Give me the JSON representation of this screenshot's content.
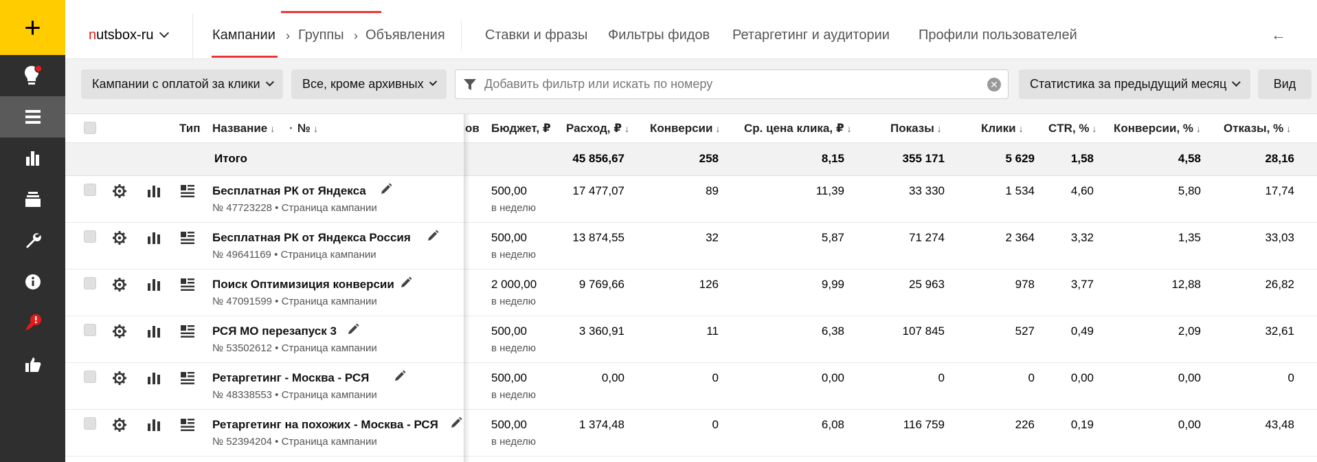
{
  "sidebar": {
    "add_label": "+",
    "items": [
      {
        "icon": "lightbulb-icon"
      },
      {
        "icon": "list-icon"
      },
      {
        "icon": "bar-chart-icon"
      },
      {
        "icon": "layers-icon"
      },
      {
        "icon": "wrench-icon"
      },
      {
        "icon": "info-icon"
      },
      {
        "icon": "rocket-alert-icon"
      },
      {
        "icon": "thumbs-up-icon"
      }
    ],
    "colors": {
      "bg": "#2f2f2f",
      "add_bg": "#ffcc00",
      "active": "#5a5a5a",
      "badge": "#e41b1b"
    }
  },
  "topnav": {
    "account_first_letter": "n",
    "account_rest": "utsbox-ru",
    "tabs": {
      "campaigns": "Кампании",
      "groups": "Группы",
      "ads": "Объявления",
      "bids": "Ставки и фразы",
      "feed_filters": "Фильтры фидов",
      "retargeting": "Ретаргетинг и аудитории",
      "profiles": "Профили пользователей"
    },
    "back_icon": "arrow-left-icon"
  },
  "filters": {
    "payment_type": "Кампании с оплатой за клики",
    "archive": "Все, кроме архивных",
    "search_placeholder": "Добавить фильтр или искать по номеру",
    "stats_period": "Статистика за предыдущий месяц",
    "view": "Вид"
  },
  "table": {
    "headers": {
      "type": "Тип",
      "name": "Название",
      "name_sort": "↓",
      "dot": "·",
      "number": "№",
      "number_sort": "↓",
      "cut": "ов",
      "budget": "Бюджет, ₽",
      "spend": "Расход, ₽",
      "conversions": "Конверсии",
      "cpc": "Ср. цена клика, ₽",
      "impressions": "Показы",
      "clicks": "Клики",
      "ctr": "CTR, %",
      "conv_rate": "Конверсии, %",
      "bounce": "Отказы, %",
      "sort_arrow": "↓"
    },
    "total": {
      "label": "Итого",
      "spend": "45 856,67",
      "conversions": "258",
      "cpc": "8,15",
      "impressions": "355 171",
      "clicks": "5 629",
      "ctr": "1,58",
      "conv_rate": "4,58",
      "bounce": "28,16"
    },
    "page_link": "Страница кампании",
    "rows": [
      {
        "name": "Бесплатная РК от Яндекса",
        "number": "№ 47723228",
        "budget": "500,00",
        "budget_period": "в неделю",
        "spend": "17 477,07",
        "conversions": "89",
        "cpc": "11,39",
        "impressions": "33 330",
        "clicks": "1 534",
        "ctr": "4,60",
        "conv_rate": "5,80",
        "bounce": "17,74"
      },
      {
        "name": "Бесплатная РК от Яндекса Россия",
        "number": "№ 49641169",
        "budget": "500,00",
        "budget_period": "в неделю",
        "spend": "13 874,55",
        "conversions": "32",
        "cpc": "5,87",
        "impressions": "71 274",
        "clicks": "2 364",
        "ctr": "3,32",
        "conv_rate": "1,35",
        "bounce": "33,03"
      },
      {
        "name": "Поиск Оптимизиция конверсии",
        "number": "№ 47091599",
        "budget": "2 000,00",
        "budget_period": "в неделю",
        "spend": "9 769,66",
        "conversions": "126",
        "cpc": "9,99",
        "impressions": "25 963",
        "clicks": "978",
        "ctr": "3,77",
        "conv_rate": "12,88",
        "bounce": "26,82"
      },
      {
        "name": "РСЯ МО перезапуск 3",
        "number": "№ 53502612",
        "budget": "500,00",
        "budget_period": "в неделю",
        "spend": "3 360,91",
        "conversions": "11",
        "cpc": "6,38",
        "impressions": "107 845",
        "clicks": "527",
        "ctr": "0,49",
        "conv_rate": "2,09",
        "bounce": "32,61"
      },
      {
        "name": "Ретаргетинг - Москва - РСЯ",
        "number": "№ 48338553",
        "budget": "500,00",
        "budget_period": "в неделю",
        "spend": "0,00",
        "conversions": "0",
        "cpc": "0,00",
        "impressions": "0",
        "clicks": "0",
        "ctr": "0,00",
        "conv_rate": "0,00",
        "bounce": "0"
      },
      {
        "name": "Ретаргетинг на похожих - Москва - РСЯ",
        "number": "№ 52394204",
        "budget": "500,00",
        "budget_period": "в неделю",
        "spend": "1 374,48",
        "conversions": "0",
        "cpc": "6,08",
        "impressions": "116 759",
        "clicks": "226",
        "ctr": "0,19",
        "conv_rate": "0,00",
        "bounce": "43,48"
      }
    ]
  }
}
